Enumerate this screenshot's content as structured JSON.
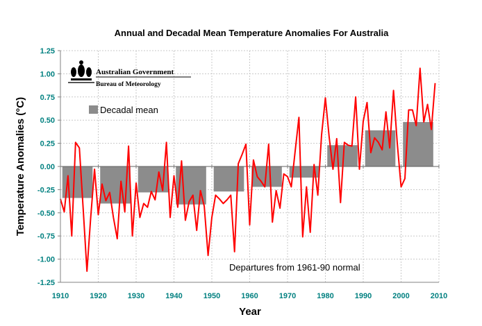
{
  "chart_data": {
    "type": "line",
    "title": "Annual and Decadal Mean Temperature Anomalies For Australia",
    "xlabel": "Year",
    "ylabel": "Temperature Anomalies (°C)",
    "xlim": [
      1910,
      2010
    ],
    "ylim": [
      -1.25,
      1.25
    ],
    "xticks": [
      1910,
      1920,
      1930,
      1940,
      1950,
      1960,
      1970,
      1980,
      1990,
      2000,
      2010
    ],
    "yticks": [
      "1.25",
      "1.00",
      "0.75",
      "0.50",
      "0.25",
      "0.00",
      "-0.25",
      "-0.50",
      "-0.75",
      "-1.00",
      "-1.25"
    ],
    "grid": true,
    "legend": {
      "placement": "top-left",
      "entries": [
        "Decadal mean"
      ]
    },
    "annotation": "Departures from 1961-90 normal",
    "colors": {
      "annual": "#ff0000",
      "decadal": "#8c8c8c",
      "ticks": "#008080"
    },
    "annual": {
      "x_start": 1910,
      "values": [
        -0.35,
        -0.49,
        -0.1,
        -0.75,
        0.26,
        0.2,
        -0.45,
        -1.13,
        -0.55,
        -0.03,
        -0.52,
        -0.19,
        -0.37,
        -0.28,
        -0.55,
        -0.78,
        -0.16,
        -0.49,
        0.22,
        -0.75,
        -0.18,
        -0.55,
        -0.4,
        -0.44,
        -0.27,
        -0.36,
        -0.06,
        -0.26,
        0.26,
        -0.55,
        -0.1,
        -0.44,
        0.06,
        -0.58,
        -0.38,
        -0.31,
        -0.69,
        -0.26,
        -0.43,
        -0.96,
        -0.55,
        -0.31,
        -0.35,
        -0.4,
        -0.36,
        -0.31,
        -0.92,
        0.03,
        0.13,
        0.24,
        -0.63,
        0.07,
        -0.11,
        -0.16,
        -0.22,
        0.24,
        -0.6,
        -0.26,
        -0.45,
        -0.08,
        -0.11,
        -0.22,
        0.16,
        0.53,
        -0.76,
        -0.22,
        -0.71,
        0.02,
        -0.31,
        0.34,
        0.74,
        0.32,
        -0.03,
        0.3,
        -0.39,
        0.26,
        0.23,
        0.22,
        0.75,
        -0.03,
        0.49,
        0.69,
        0.15,
        0.31,
        0.26,
        0.18,
        0.59,
        0.2,
        0.82,
        0.25,
        -0.22,
        -0.13,
        0.61,
        0.61,
        0.44,
        1.06,
        0.48,
        0.67,
        0.4,
        0.9
      ]
    },
    "decadal": {
      "name": "Decadal mean",
      "decades": [
        1910,
        1920,
        1930,
        1940,
        1950,
        1960,
        1970,
        1980,
        1990,
        2000
      ],
      "values": [
        -0.34,
        -0.4,
        -0.28,
        -0.41,
        -0.27,
        -0.22,
        -0.12,
        0.23,
        0.39,
        0.48
      ]
    }
  },
  "logo": {
    "line1": "Australian Government",
    "line2": "Bureau of Meteorology"
  }
}
